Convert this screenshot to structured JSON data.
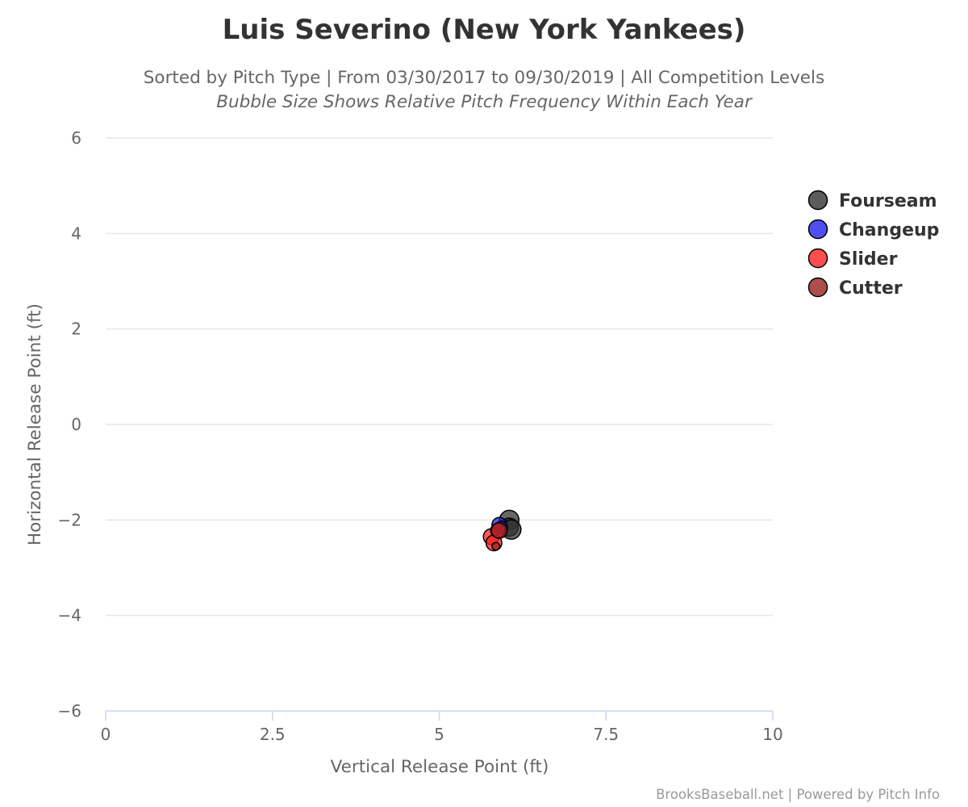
{
  "chart_data": {
    "type": "scatter",
    "title": "Luis Severino (New York Yankees)",
    "subtitle": "Sorted by Pitch Type | From 03/30/2017 to 09/30/2019 | All Competition Levels",
    "subtitle2": "Bubble Size Shows Relative Pitch Frequency Within Each Year",
    "xlabel": "Vertical Release Point (ft)",
    "ylabel": "Horizontal Release Point (ft)",
    "xlim": [
      0,
      10
    ],
    "ylim": [
      -6,
      6
    ],
    "x_ticks": [
      0,
      2.5,
      5,
      7.5,
      10
    ],
    "x_tick_labels": [
      "0",
      "2.5",
      "5",
      "7.5",
      "10"
    ],
    "y_ticks": [
      6,
      4,
      2,
      0,
      -2,
      -4,
      -6
    ],
    "y_tick_labels": [
      "6",
      "4",
      "2",
      "0",
      "−2",
      "−4",
      "−6"
    ],
    "grid": true,
    "legend_position": "right",
    "series": [
      {
        "name": "Fourseam",
        "color": "#333333",
        "points": [
          {
            "x": 6.05,
            "y": -2.0,
            "size": 0.6
          },
          {
            "x": 6.05,
            "y": -2.15,
            "size": 0.55
          },
          {
            "x": 6.08,
            "y": -2.2,
            "size": 0.6
          }
        ]
      },
      {
        "name": "Changeup",
        "color": "#2222ee",
        "points": [
          {
            "x": 5.9,
            "y": -2.1,
            "size": 0.4
          },
          {
            "x": 5.93,
            "y": -2.15,
            "size": 0.3
          }
        ]
      },
      {
        "name": "Slider",
        "color": "#ff2222",
        "points": [
          {
            "x": 5.78,
            "y": -2.35,
            "size": 0.45
          },
          {
            "x": 5.82,
            "y": -2.48,
            "size": 0.45
          },
          {
            "x": 5.88,
            "y": -2.22,
            "size": 0.4
          }
        ]
      },
      {
        "name": "Cutter",
        "color": "#992222",
        "points": [
          {
            "x": 5.9,
            "y": -2.22,
            "size": 0.45
          },
          {
            "x": 5.85,
            "y": -2.55,
            "size": 0.12
          }
        ]
      }
    ],
    "credits": "BrooksBaseball.net | Powered by Pitch Info"
  }
}
